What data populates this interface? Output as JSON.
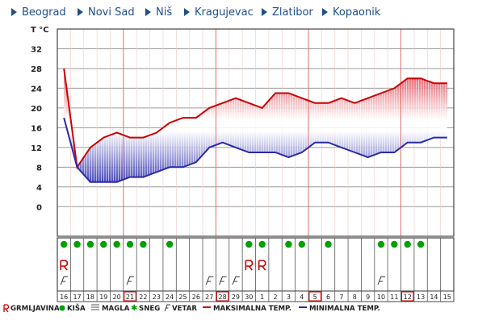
{
  "nav": [
    {
      "label": "Beograd"
    },
    {
      "label": "Novi Sad"
    },
    {
      "label": "Niš"
    },
    {
      "label": "Kragujevac"
    },
    {
      "label": "Zlatibor"
    },
    {
      "label": "Kopaonik"
    }
  ],
  "chart_data": {
    "type": "area",
    "ylabel": "T °C",
    "ylim": [
      -6,
      36
    ],
    "yticks": [
      0,
      4,
      8,
      12,
      16,
      20,
      24,
      28,
      32
    ],
    "categories": [
      "16",
      "17",
      "18",
      "19",
      "20",
      "21",
      "22",
      "23",
      "24",
      "25",
      "26",
      "27",
      "28",
      "29",
      "30",
      "1",
      "2",
      "3",
      "4",
      "5",
      "6",
      "7",
      "8",
      "9",
      "10",
      "11",
      "12",
      "13",
      "14",
      "15"
    ],
    "highlighted_days": [
      "21",
      "28",
      "5",
      "12"
    ],
    "series": [
      {
        "name": "MAKSIMALNA TEMP.",
        "color": "#cc0000",
        "values": [
          28,
          8,
          12,
          14,
          15,
          14,
          14,
          15,
          17,
          18,
          18,
          20,
          21,
          22,
          21,
          20,
          23,
          23,
          22,
          21,
          21,
          22,
          21,
          22,
          23,
          24,
          26,
          26,
          25,
          25
        ]
      },
      {
        "name": "MINIMALNA TEMP.",
        "color": "#2a2aa8",
        "values": [
          18,
          8,
          5,
          5,
          5,
          6,
          6,
          7,
          8,
          8,
          9,
          12,
          13,
          12,
          11,
          11,
          11,
          10,
          11,
          13,
          13,
          12,
          11,
          10,
          11,
          11,
          13,
          13,
          14,
          14
        ]
      }
    ],
    "weather": {
      "rain": [
        "16",
        "17",
        "18",
        "19",
        "20",
        "21",
        "22",
        "24",
        "30",
        "1",
        "3",
        "4",
        "6",
        "10",
        "11",
        "12",
        "13"
      ],
      "storm": [
        "16",
        "30",
        "1"
      ],
      "wind": [
        "16",
        "21",
        "27",
        "28",
        "29",
        "10"
      ]
    }
  },
  "legend": [
    {
      "label": "GRMLJAVINA",
      "icon": "storm-icon",
      "color": "#cc0000"
    },
    {
      "label": "KIŠA",
      "icon": "rain-icon",
      "color": "#00a000"
    },
    {
      "label": "MAGLA",
      "icon": "fog-icon",
      "color": "#555555"
    },
    {
      "label": "SNEG",
      "icon": "snow-icon",
      "color": "#00a000"
    },
    {
      "label": "VETAR",
      "icon": "wind-icon",
      "color": "#333333"
    },
    {
      "label": "MAKSIMALNA TEMP.",
      "icon": "max-temp-line",
      "color": "#cc0000"
    },
    {
      "label": "MINIMALNA TEMP.",
      "icon": "min-temp-line",
      "color": "#2a2aa8"
    }
  ]
}
